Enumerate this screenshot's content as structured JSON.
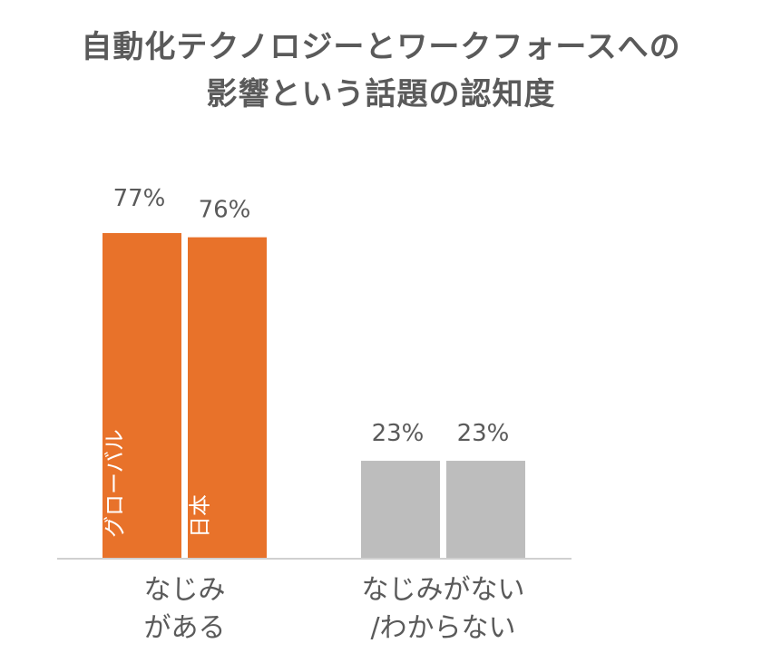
{
  "chart_data": {
    "type": "bar",
    "title_lines": [
      "自動化テクノロジーとワークフォースへの",
      "影響という話題の認知度"
    ],
    "categories": [
      {
        "label_lines": [
          "なじみ",
          "がある"
        ],
        "color": "#E8722A"
      },
      {
        "label_lines": [
          "なじみがない",
          "/わからない"
        ],
        "color": "#BDBDBD"
      }
    ],
    "series": [
      {
        "name": "グローバル",
        "values": [
          77,
          23
        ]
      },
      {
        "name": "日本",
        "values": [
          76,
          23
        ]
      }
    ],
    "value_labels": [
      [
        "77%",
        "23%"
      ],
      [
        "76%",
        "23%"
      ]
    ],
    "ylim": [
      0,
      100
    ],
    "grid": false,
    "legend": "in-bar vertical labels",
    "colors": {
      "highlight": "#E8722A",
      "muted": "#BDBDBD",
      "text": "#5a5a5a",
      "baseline": "#d0d0d0",
      "in_bar_text": "#ffffff"
    }
  }
}
